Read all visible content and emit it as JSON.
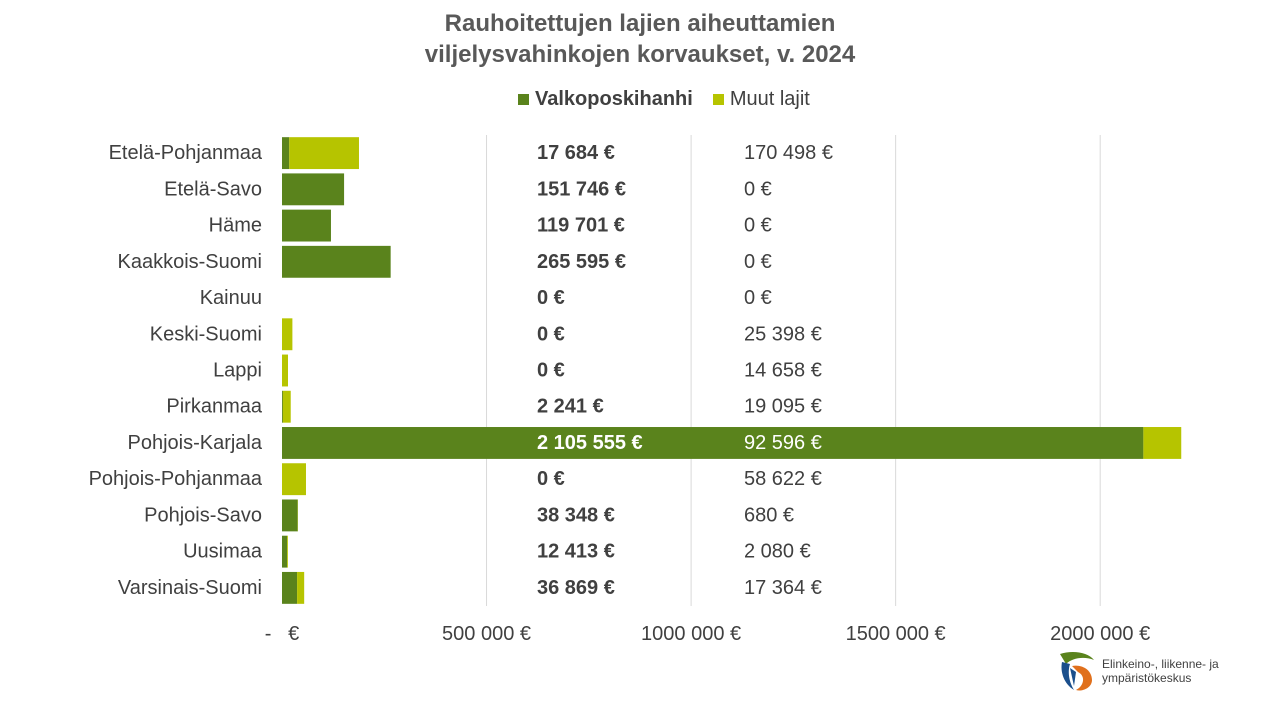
{
  "chart_data": {
    "type": "bar",
    "orientation": "horizontal",
    "stacked": true,
    "title_lines": [
      "Rauhoitettujen lajien aiheuttamien",
      "viljelysvahinkojen korvaukset, v. 2024"
    ],
    "categories": [
      "Etelä-Pohjanmaa",
      "Etelä-Savo",
      "Häme",
      "Kaakkois-Suomi",
      "Kainuu",
      "Keski-Suomi",
      "Lappi",
      "Pirkanmaa",
      "Pohjois-Karjala",
      "Pohjois-Pohjanmaa",
      "Pohjois-Savo",
      "Uusimaa",
      "Varsinais-Suomi"
    ],
    "series": [
      {
        "name": "Valkoposkihanhi",
        "color": "#5a831c",
        "values": [
          17684,
          151746,
          119701,
          265595,
          0,
          0,
          0,
          2241,
          2105555,
          0,
          38348,
          12413,
          36869
        ],
        "labels": [
          "17 684 €",
          "151 746 €",
          "119 701 €",
          "265 595 €",
          "0 €",
          "0 €",
          "0 €",
          "2 241 €",
          "2 105 555 €",
          "0 €",
          "38 348 €",
          "12 413 €",
          "36 869 €"
        ]
      },
      {
        "name": "Muut lajit",
        "color": "#b6c400",
        "values": [
          170498,
          0,
          0,
          0,
          0,
          25398,
          14658,
          19095,
          92596,
          58622,
          680,
          2080,
          17364
        ],
        "labels": [
          "170 498 €",
          "0 €",
          "0 €",
          "0 €",
          "0 €",
          "25 398 €",
          "14 658 €",
          "19 095 €",
          "92 596 €",
          "58 622 €",
          "680 €",
          "2 080 €",
          "17 364 €"
        ]
      }
    ],
    "xlim": [
      0,
      2200000
    ],
    "x_ticks": [
      0,
      500000,
      1000000,
      1500000,
      2000000
    ],
    "x_tick_labels": [
      "-   €",
      "500 000 €",
      "1000 000 €",
      "1500 000 €",
      "2000 000 €"
    ],
    "grid": "vertical",
    "legend_position": "top"
  },
  "logo": {
    "line1": "Elinkeino-, liikenne- ja",
    "line2": "ympäristökeskus"
  }
}
